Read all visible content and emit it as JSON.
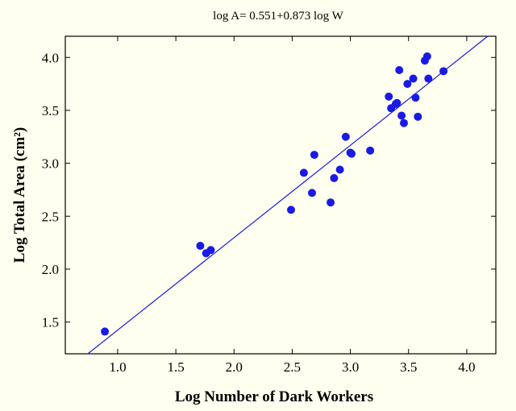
{
  "chart_data": {
    "type": "scatter",
    "title": "log A= 0.551+0.873 log W",
    "xlabel": "Log Number of Dark Workers",
    "ylabel": "Log Total Area (cm²)",
    "xlim": [
      0.55,
      4.25
    ],
    "ylim": [
      1.2,
      4.2
    ],
    "xticks": [
      "1.0",
      "1.5",
      "2.0",
      "2.5",
      "3.0",
      "3.5",
      "4.0"
    ],
    "yticks": [
      "1.5",
      "2.0",
      "2.5",
      "3.0",
      "3.5",
      "4.0"
    ],
    "grid": false,
    "point_color": "#1a1ae6",
    "line_color": "#1a1ae6",
    "fit": {
      "intercept": 0.551,
      "slope": 0.873
    },
    "points": [
      [
        0.89,
        1.41
      ],
      [
        1.71,
        2.22
      ],
      [
        1.76,
        2.15
      ],
      [
        1.8,
        2.18
      ],
      [
        2.49,
        2.56
      ],
      [
        2.6,
        2.91
      ],
      [
        2.67,
        2.72
      ],
      [
        2.69,
        3.08
      ],
      [
        2.83,
        2.63
      ],
      [
        2.86,
        2.86
      ],
      [
        2.91,
        2.94
      ],
      [
        2.96,
        3.25
      ],
      [
        3.0,
        3.1
      ],
      [
        3.01,
        3.09
      ],
      [
        3.17,
        3.12
      ],
      [
        3.33,
        3.63
      ],
      [
        3.35,
        3.52
      ],
      [
        3.39,
        3.56
      ],
      [
        3.4,
        3.57
      ],
      [
        3.42,
        3.88
      ],
      [
        3.44,
        3.45
      ],
      [
        3.46,
        3.38
      ],
      [
        3.49,
        3.75
      ],
      [
        3.54,
        3.8
      ],
      [
        3.56,
        3.62
      ],
      [
        3.58,
        3.44
      ],
      [
        3.64,
        3.97
      ],
      [
        3.66,
        4.01
      ],
      [
        3.67,
        3.8
      ],
      [
        3.8,
        3.87
      ]
    ]
  }
}
